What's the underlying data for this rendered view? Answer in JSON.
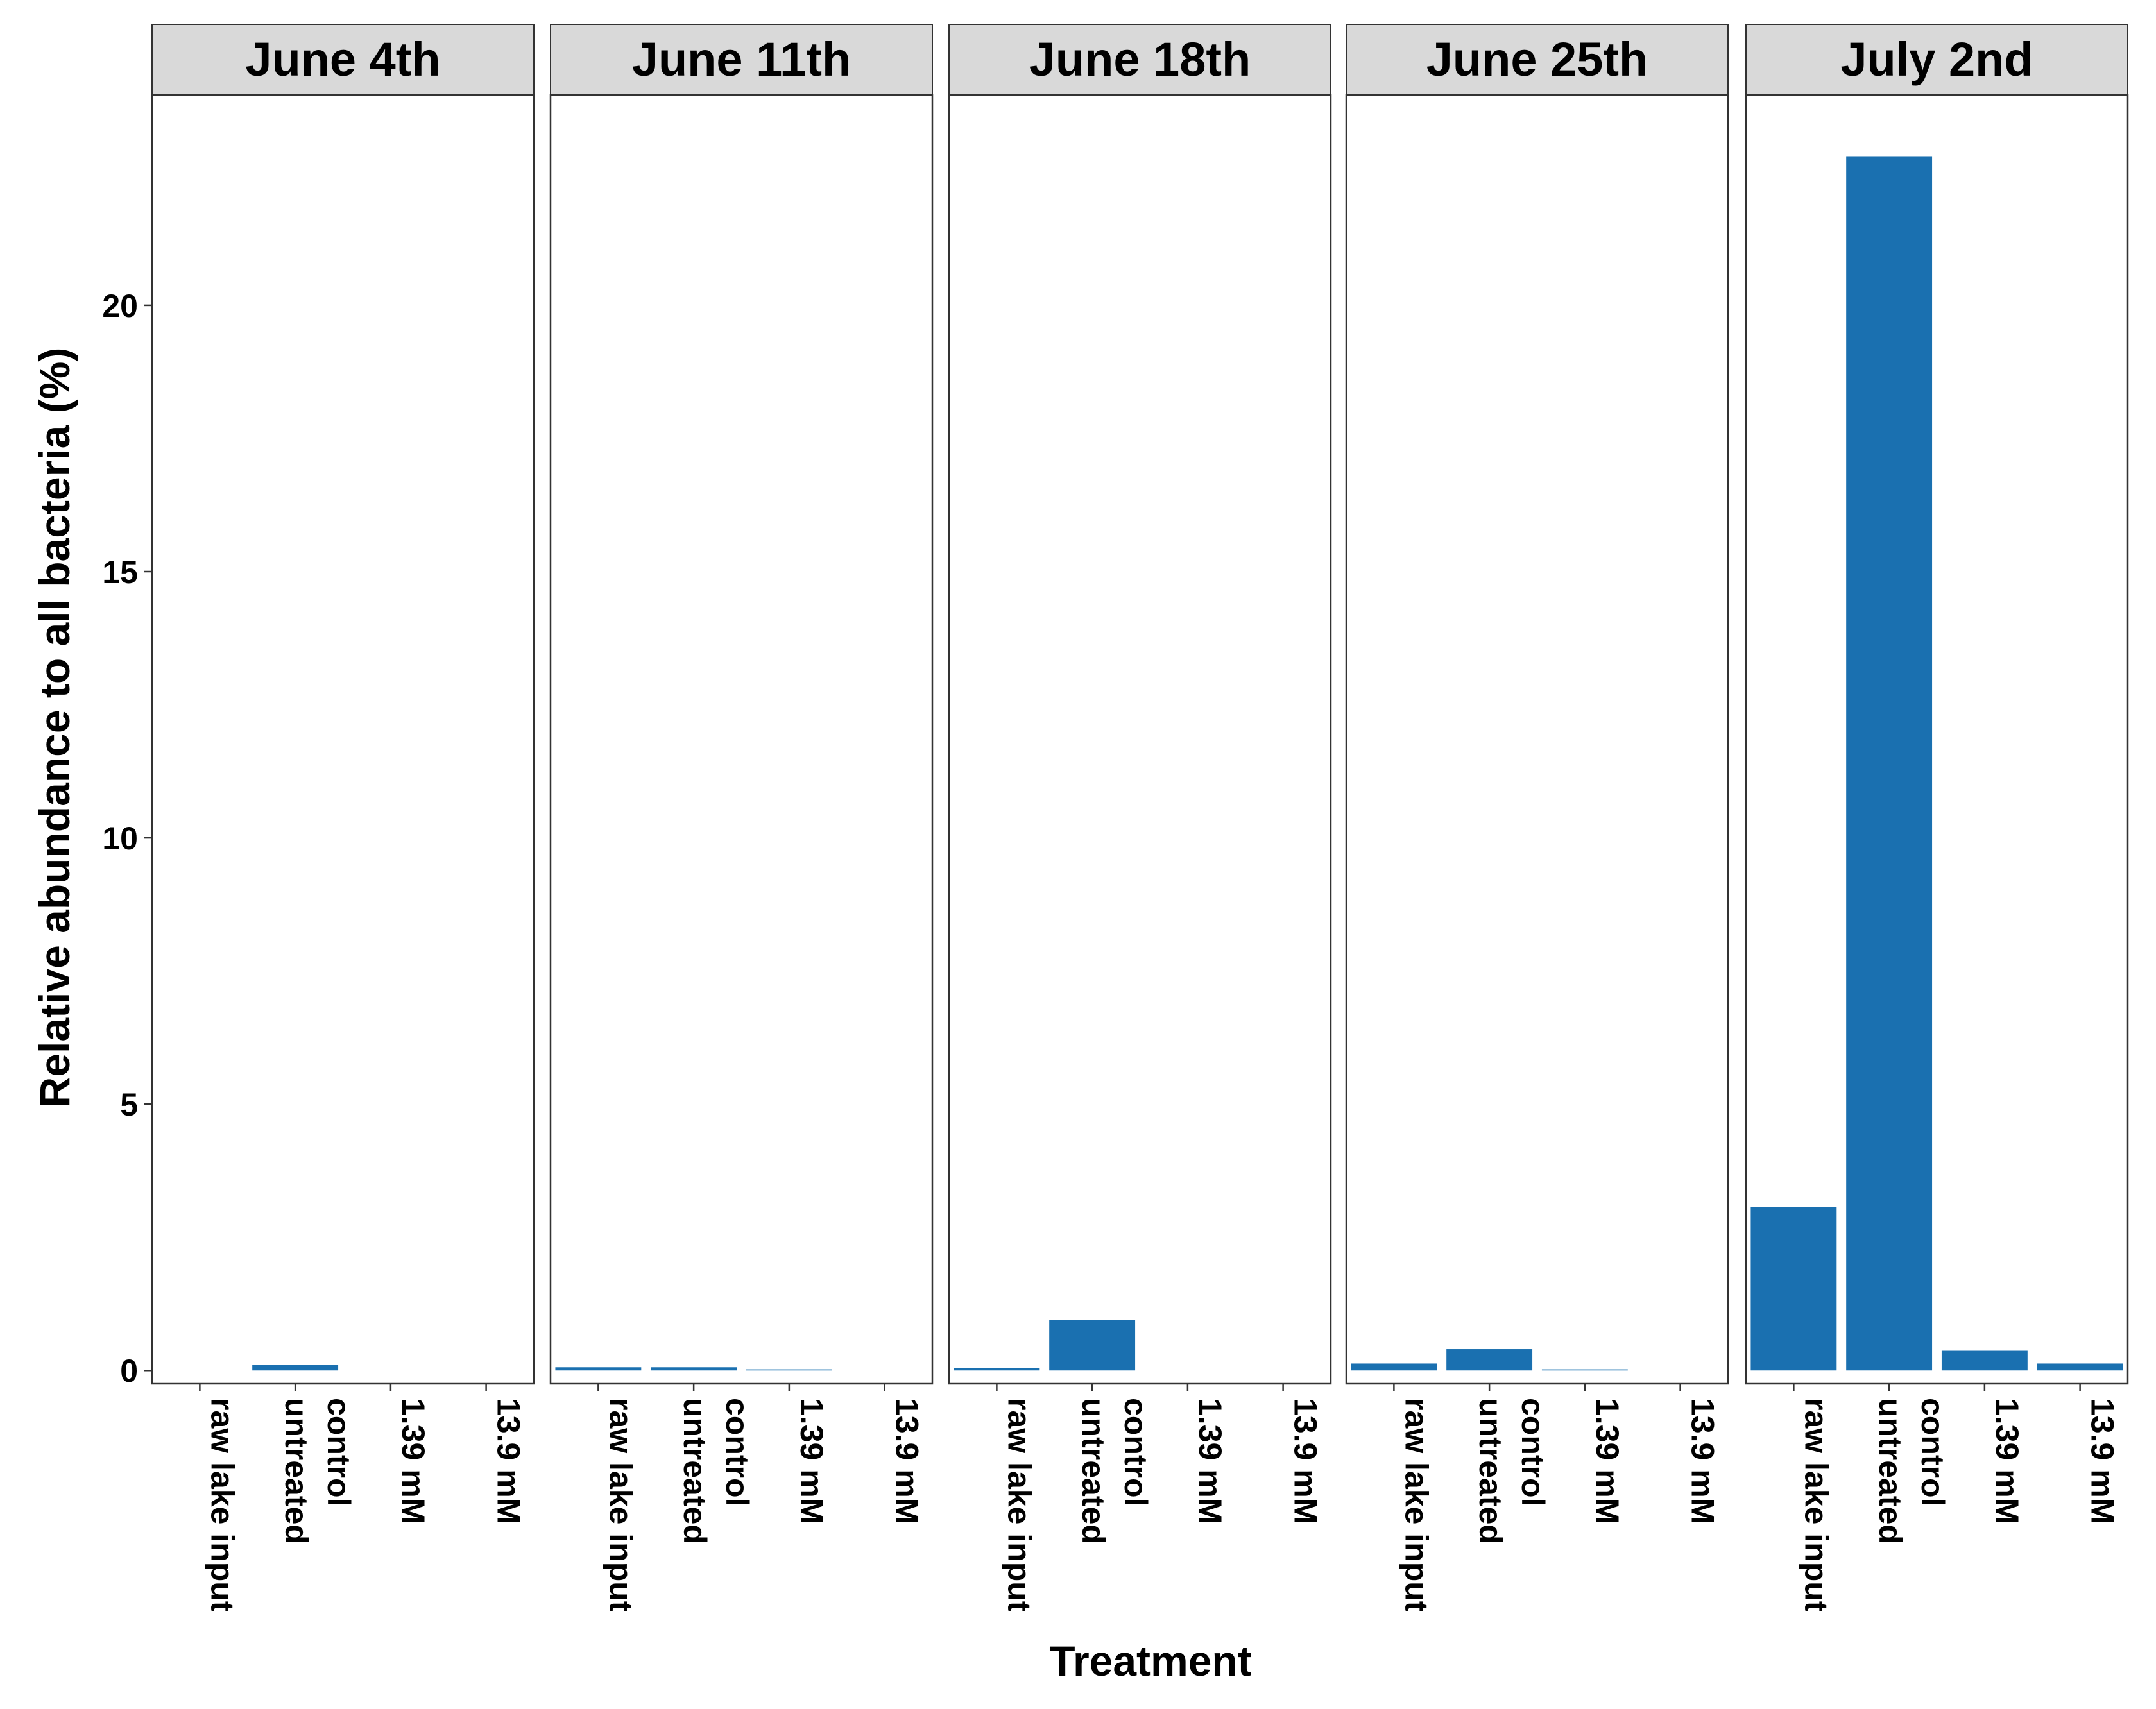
{
  "chart_data": {
    "type": "bar",
    "title": "",
    "xlabel": "Treatment",
    "ylabel": "Relative abundance to all bacteria (%)",
    "ylim": [
      -0.25,
      23.95
    ],
    "yticks": [
      0,
      5,
      10,
      15,
      20
    ],
    "grid": false,
    "legend": "none",
    "bar_color": "#1a70b0",
    "strip_color": "#d9d9d9",
    "categories": [
      "raw lake input",
      "untreated control",
      "1.39 mM",
      "13.9 mM"
    ],
    "category_lines": [
      [
        "raw lake input"
      ],
      [
        "untreated",
        "control"
      ],
      [
        "1.39 mM"
      ],
      [
        "13.9 mM"
      ]
    ],
    "panels": [
      {
        "label": "June 4th",
        "values": [
          0.0,
          0.1,
          0.0,
          0.0
        ]
      },
      {
        "label": "June 11th",
        "values": [
          0.06,
          0.06,
          0.02,
          0.0
        ]
      },
      {
        "label": "June 18th",
        "values": [
          0.05,
          0.95,
          0.0,
          0.0
        ]
      },
      {
        "label": "June 25th",
        "values": [
          0.13,
          0.4,
          0.02,
          0.0
        ]
      },
      {
        "label": "July 2nd",
        "values": [
          3.07,
          22.8,
          0.37,
          0.13
        ]
      }
    ]
  }
}
